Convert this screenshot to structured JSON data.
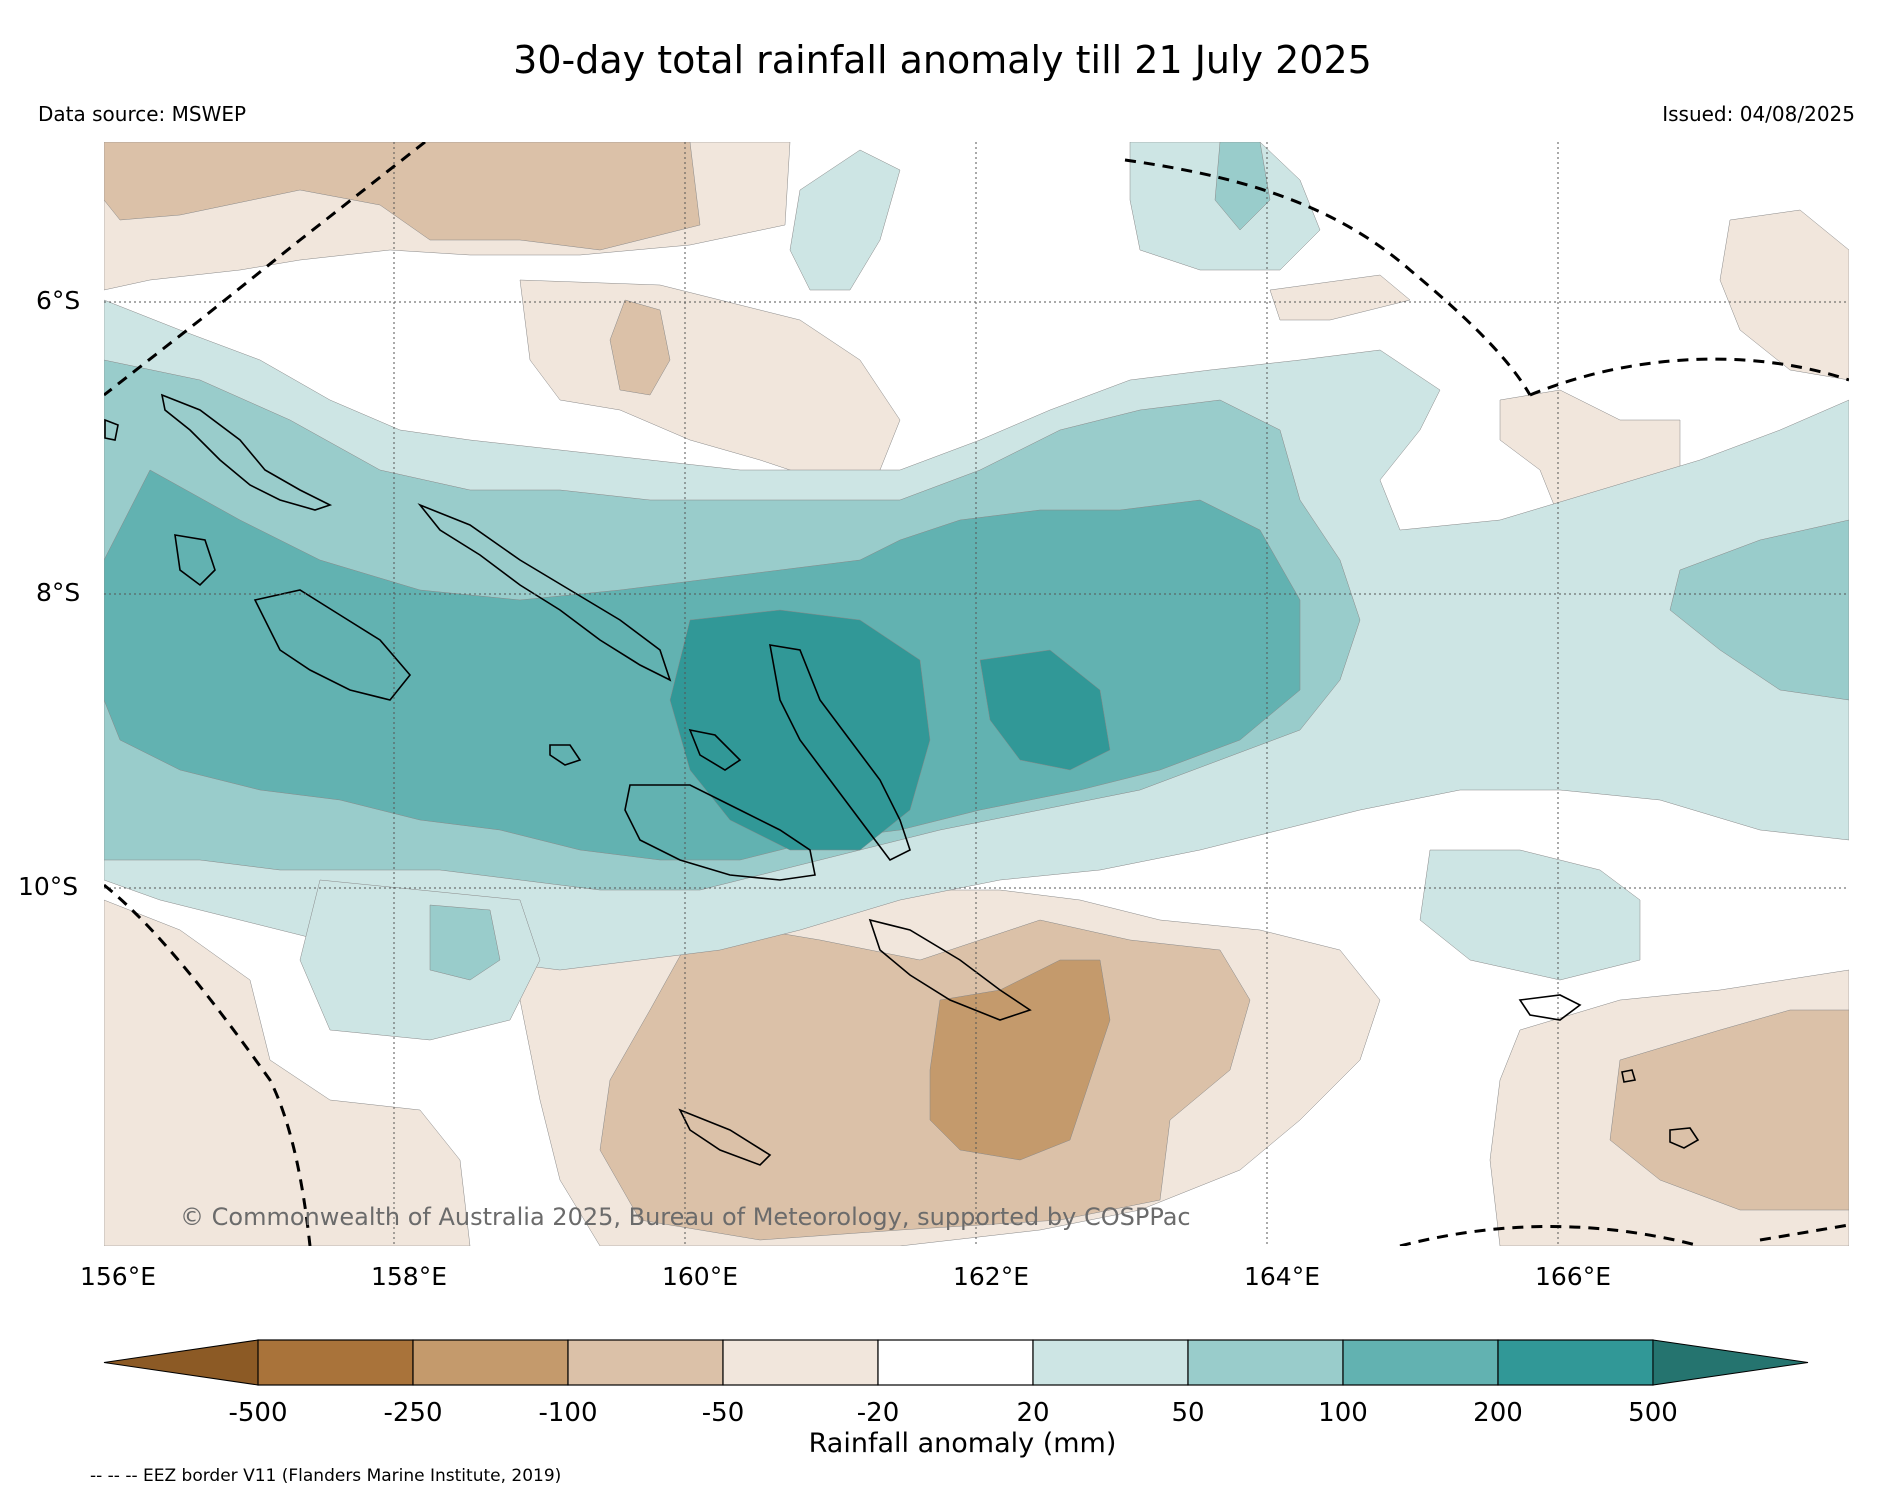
{
  "title": "30-day total rainfall anomaly till 21 July 2025",
  "data_source": "Data source: MSWEP",
  "issued": "Issued: 04/08/2025",
  "copyright": "© Commonwealth of Australia 2025, Bureau of Meteorology, supported by COSPPac",
  "latitude_labels": [
    "6°S",
    "8°S",
    "10°S"
  ],
  "longitude_labels": [
    "156°E",
    "158°E",
    "160°E",
    "162°E",
    "164°E",
    "166°E"
  ],
  "colorbar": {
    "title": "Rainfall anomaly (mm)",
    "tick_labels": [
      "-500",
      "-250",
      "-100",
      "-50",
      "-20",
      "20",
      "50",
      "100",
      "200",
      "500"
    ],
    "colors": [
      "#8c5a25",
      "#a9733a",
      "#c49a6c",
      "#dbc1a8",
      "#f1e6dc",
      "#ffffff",
      "#cde5e4",
      "#99cccb",
      "#62b2b1",
      "#319897",
      "#25746f"
    ]
  },
  "legend_note": "-- -- -- EEZ border V11 (Flanders Marine Institute, 2019)",
  "map_extent": {
    "lon": [
      156,
      168
    ],
    "lat": [
      -4.9,
      -12.5
    ]
  }
}
